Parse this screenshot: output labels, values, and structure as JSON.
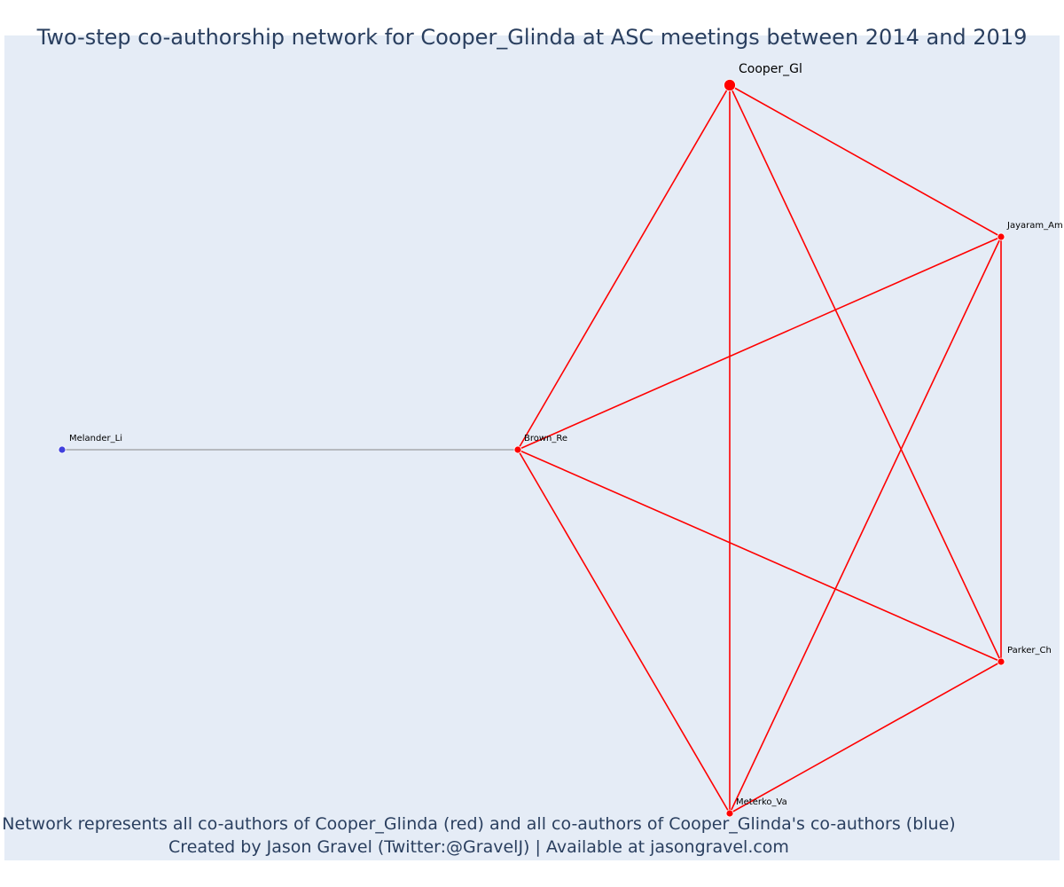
{
  "title": "Two-step co-authorship network for Cooper_Glinda at ASC meetings between 2014 and 2019",
  "caption_line1": "Network represents all co-authors of Cooper_Glinda (red) and all co-authors of Cooper_Glinda's co-authors (blue)",
  "caption_line2": "Created by Jason Gravel (Twitter:@GravelJ) | Available at jasongravel.com",
  "colors": {
    "background": "#e5ecf6",
    "first_degree": "#ff0000",
    "second_degree": "#4040dd",
    "second_degree_edge": "#888888",
    "text": "#2a3f5f"
  },
  "network": {
    "focal": "Cooper_Gl",
    "nodes": [
      {
        "id": "Cooper_Gl",
        "label": "Cooper_Gl",
        "group": "focal"
      },
      {
        "id": "Jayaram_Am",
        "label": "Jayaram_Am",
        "group": "coauthor"
      },
      {
        "id": "Brown_Re",
        "label": "Brown_Re",
        "group": "coauthor"
      },
      {
        "id": "Parker_Ch",
        "label": "Parker_Ch",
        "group": "coauthor"
      },
      {
        "id": "Meterko_Va",
        "label": "Meterko_Va",
        "group": "coauthor"
      },
      {
        "id": "Melander_Li",
        "label": "Melander_Li",
        "group": "second"
      }
    ],
    "edges": [
      {
        "source": "Cooper_Gl",
        "target": "Jayaram_Am",
        "type": "first"
      },
      {
        "source": "Cooper_Gl",
        "target": "Brown_Re",
        "type": "first"
      },
      {
        "source": "Cooper_Gl",
        "target": "Parker_Ch",
        "type": "first"
      },
      {
        "source": "Cooper_Gl",
        "target": "Meterko_Va",
        "type": "first"
      },
      {
        "source": "Jayaram_Am",
        "target": "Brown_Re",
        "type": "first"
      },
      {
        "source": "Jayaram_Am",
        "target": "Parker_Ch",
        "type": "first"
      },
      {
        "source": "Jayaram_Am",
        "target": "Meterko_Va",
        "type": "first"
      },
      {
        "source": "Brown_Re",
        "target": "Parker_Ch",
        "type": "first"
      },
      {
        "source": "Brown_Re",
        "target": "Meterko_Va",
        "type": "first"
      },
      {
        "source": "Parker_Ch",
        "target": "Meterko_Va",
        "type": "first"
      },
      {
        "source": "Melander_Li",
        "target": "Brown_Re",
        "type": "second"
      }
    ]
  }
}
